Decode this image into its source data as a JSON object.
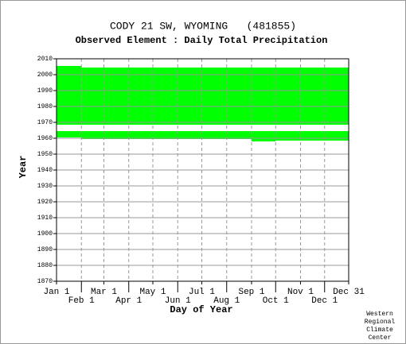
{
  "chart_data": {
    "type": "coverage",
    "title": "CODY 21 SW, WYOMING   (481855)",
    "subtitle": "Observed Element : Daily Total Precipitation",
    "x_label": "Day of Year",
    "y_label": "Year",
    "credit": [
      "Western",
      "Regional",
      "Climate",
      "Center"
    ],
    "color": "#00ff00",
    "xlim": [
      1,
      365
    ],
    "ylim": [
      1870,
      2010
    ],
    "xticks": [
      {
        "value": 1,
        "label": "Jan 1"
      },
      {
        "value": 32,
        "label": "Feb 1"
      },
      {
        "value": 60,
        "label": "Mar 1"
      },
      {
        "value": 91,
        "label": "Apr 1"
      },
      {
        "value": 121,
        "label": "May 1"
      },
      {
        "value": 152,
        "label": "Jun 1"
      },
      {
        "value": 182,
        "label": "Jul 1"
      },
      {
        "value": 213,
        "label": "Aug 1"
      },
      {
        "value": 244,
        "label": "Sep 1"
      },
      {
        "value": 274,
        "label": "Oct 1"
      },
      {
        "value": 305,
        "label": "Nov 1"
      },
      {
        "value": 335,
        "label": "Dec 1"
      },
      {
        "value": 365,
        "label": "Dec 31"
      }
    ],
    "yticks": [
      1870,
      1880,
      1890,
      1900,
      1910,
      1920,
      1930,
      1940,
      1950,
      1960,
      1970,
      1980,
      1990,
      2000,
      2010
    ],
    "blocks": [
      {
        "x": [
          1,
          32
        ],
        "y": [
          1968.5,
          2005.5
        ]
      },
      {
        "x": [
          32,
          365
        ],
        "y": [
          1968.5,
          2004.5
        ]
      },
      {
        "x": [
          1,
          365
        ],
        "y": [
          1960.5,
          1964.5
        ]
      },
      {
        "x": [
          32,
          152
        ],
        "y": [
          1959.5,
          1960.5
        ]
      },
      {
        "x": [
          152,
          244
        ],
        "y": [
          1959.5,
          1961
        ]
      },
      {
        "x": [
          244,
          274
        ],
        "y": [
          1958,
          1960.5
        ]
      },
      {
        "x": [
          274,
          365
        ],
        "y": [
          1958.5,
          1960.5
        ]
      }
    ]
  }
}
